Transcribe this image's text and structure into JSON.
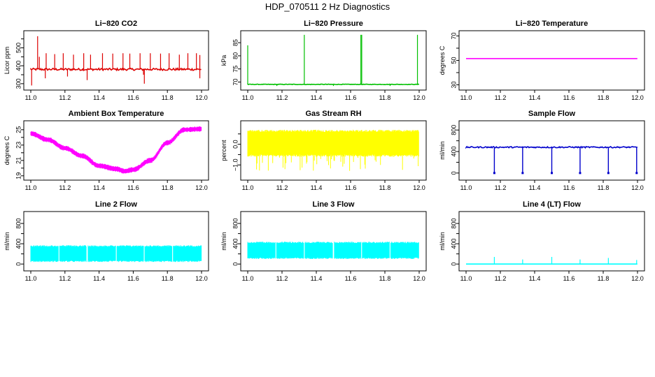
{
  "figure_title": "HDP_070511  2 Hz Diagnostics",
  "chart_data": [
    {
      "type": "line",
      "title": "Li−820 CO2",
      "ylabel": "Licor ppm",
      "color": "#dd0000",
      "xlim": [
        11.0,
        12.0
      ],
      "xticks": [
        "11.0",
        "11.2",
        "11.4",
        "11.6",
        "11.8",
        "12.0"
      ],
      "ylim": [
        280,
        580
      ],
      "yticks": [
        300,
        350,
        400,
        450,
        500,
        550
      ],
      "ytick_labels": [
        "300",
        "",
        "400",
        "",
        "500",
        ""
      ],
      "series": [
        {
          "name": "CO2",
          "baseline": 380,
          "noise": 6,
          "spikes": [
            {
              "x": 11.04,
              "v": 565
            },
            {
              "x": 11.05,
              "v": 450
            },
            {
              "x": 11.09,
              "v": 470
            },
            {
              "x": 11.14,
              "v": 465
            },
            {
              "x": 11.19,
              "v": 470
            },
            {
              "x": 11.25,
              "v": 462
            },
            {
              "x": 11.31,
              "v": 470
            },
            {
              "x": 11.33,
              "v": 320
            },
            {
              "x": 11.35,
              "v": 462
            },
            {
              "x": 11.42,
              "v": 470
            },
            {
              "x": 11.48,
              "v": 468
            },
            {
              "x": 11.54,
              "v": 470
            },
            {
              "x": 11.58,
              "v": 468
            },
            {
              "x": 11.64,
              "v": 470
            },
            {
              "x": 11.66,
              "v": 350
            },
            {
              "x": 11.7,
              "v": 470
            },
            {
              "x": 11.76,
              "v": 468
            },
            {
              "x": 11.81,
              "v": 470
            },
            {
              "x": 11.87,
              "v": 462
            },
            {
              "x": 11.92,
              "v": 470
            },
            {
              "x": 11.97,
              "v": 470
            },
            {
              "x": 11.99,
              "v": 460
            },
            {
              "x": 11.005,
              "v": 290
            },
            {
              "x": 11.085,
              "v": 330
            },
            {
              "x": 11.215,
              "v": 340
            },
            {
              "x": 11.665,
              "v": 300
            },
            {
              "x": 11.99,
              "v": 330
            }
          ]
        }
      ]
    },
    {
      "type": "line",
      "title": "Li−820 Pressure",
      "ylabel": "kPa",
      "color": "#00c000",
      "xlim": [
        11.0,
        12.0
      ],
      "xticks": [
        "11.0",
        "11.2",
        "11.4",
        "11.6",
        "11.8",
        "12.0"
      ],
      "ylim": [
        68,
        88.5
      ],
      "yticks": [
        70,
        75,
        80,
        85
      ],
      "ytick_labels": [
        "70",
        "75",
        "80",
        "85"
      ],
      "series": [
        {
          "name": "Pressure",
          "baseline": 69.1,
          "noise": 0.1,
          "spikes": [
            {
              "x": 11.0,
              "v": 84
            },
            {
              "x": 11.33,
              "v": 88
            },
            {
              "x": 11.66,
              "v": 88
            },
            {
              "x": 11.665,
              "v": 88
            },
            {
              "x": 11.99,
              "v": 88
            },
            {
              "x": 11.17,
              "v": 68.5
            },
            {
              "x": 11.5,
              "v": 68.5
            },
            {
              "x": 11.83,
              "v": 68.5
            }
          ]
        }
      ]
    },
    {
      "type": "line",
      "title": "Li−820 Temperature",
      "ylabel": "degrees C",
      "color": "#ff00ff",
      "xlim": [
        11.0,
        12.0
      ],
      "xticks": [
        "11.0",
        "11.2",
        "11.4",
        "11.6",
        "11.8",
        "12.0"
      ],
      "ylim": [
        28,
        72
      ],
      "yticks": [
        30,
        40,
        50,
        60,
        70
      ],
      "ytick_labels": [
        "30",
        "",
        "50",
        "",
        "70"
      ],
      "series": [
        {
          "name": "Temperature",
          "baseline": 51.5,
          "noise": 0,
          "spikes": []
        }
      ]
    },
    {
      "type": "line",
      "title": "Ambient Box Temperature",
      "ylabel": "degrees C",
      "color": "#ff00ff",
      "xlim": [
        11.0,
        12.0
      ],
      "xticks": [
        "11.0",
        "11.2",
        "11.4",
        "11.6",
        "11.8",
        "12.0"
      ],
      "ylim": [
        18.8,
        25.8
      ],
      "yticks": [
        19,
        20,
        21,
        22,
        23,
        24,
        25
      ],
      "ytick_labels": [
        "19",
        "",
        "21",
        "",
        "23",
        "",
        "25"
      ],
      "series": [
        {
          "name": "Ambient",
          "noise": 0.35,
          "x": [
            11.0,
            11.1,
            11.2,
            11.3,
            11.4,
            11.5,
            11.55,
            11.6,
            11.7,
            11.8,
            11.9,
            12.0
          ],
          "values": [
            24.5,
            23.7,
            22.6,
            21.6,
            20.3,
            19.9,
            19.6,
            19.8,
            21.0,
            23.3,
            25.0,
            25.1
          ]
        }
      ]
    },
    {
      "type": "line",
      "title": "Gas Stream RH",
      "ylabel": "percent",
      "color": "#ffff00",
      "xlim": [
        11.0,
        12.0
      ],
      "xticks": [
        "11.0",
        "11.2",
        "11.4",
        "11.6",
        "11.8",
        "12.0"
      ],
      "ylim": [
        -1.6,
        1.0
      ],
      "yticks": [
        -1.0,
        -0.5,
        0.0,
        0.5
      ],
      "ytick_labels": [
        "−1.0",
        "",
        "0.0",
        ""
      ],
      "series": [
        {
          "name": "RH",
          "band": [
            -0.6,
            0.7
          ],
          "dips_to": -1.3
        }
      ]
    },
    {
      "type": "line",
      "title": "Sample Flow",
      "ylabel": "ml/min",
      "color": "#0000cc",
      "xlim": [
        11.0,
        12.0
      ],
      "xticks": [
        "11.0",
        "11.2",
        "11.4",
        "11.6",
        "11.8",
        "12.0"
      ],
      "ylim": [
        -80,
        920
      ],
      "yticks": [
        0,
        200,
        400,
        600,
        800
      ],
      "ytick_labels": [
        "0",
        "",
        "400",
        "",
        "800"
      ],
      "series": [
        {
          "name": "Sample",
          "baseline": 480,
          "noise": 12,
          "drops": [
            {
              "x": 11.165,
              "v": 0
            },
            {
              "x": 11.33,
              "v": 0
            },
            {
              "x": 11.5,
              "v": 0
            },
            {
              "x": 11.665,
              "v": 0
            },
            {
              "x": 11.83,
              "v": 0
            },
            {
              "x": 11.995,
              "v": 0
            }
          ]
        }
      ]
    },
    {
      "type": "line",
      "title": "Line 2 Flow",
      "ylabel": "ml/min",
      "color": "#00ffff",
      "xlim": [
        11.0,
        12.0
      ],
      "xticks": [
        "11.0",
        "11.2",
        "11.4",
        "11.6",
        "11.8",
        "12.0"
      ],
      "ylim": [
        -80,
        980
      ],
      "yticks": [
        0,
        200,
        400,
        600,
        800
      ],
      "ytick_labels": [
        "0",
        "",
        "400",
        "",
        "800"
      ],
      "series": [
        {
          "name": "Line 2",
          "band": [
            40,
            370
          ],
          "gaps": [
            11.165,
            11.33,
            11.5,
            11.665,
            11.83
          ]
        }
      ]
    },
    {
      "type": "line",
      "title": "Line 3 Flow",
      "ylabel": "ml/min",
      "color": "#00ffff",
      "xlim": [
        11.0,
        12.0
      ],
      "xticks": [
        "11.0",
        "11.2",
        "11.4",
        "11.6",
        "11.8",
        "12.0"
      ],
      "ylim": [
        -80,
        980
      ],
      "yticks": [
        0,
        200,
        400,
        600,
        800
      ],
      "ytick_labels": [
        "0",
        "",
        "400",
        "",
        "800"
      ],
      "series": [
        {
          "name": "Line 3",
          "band": [
            100,
            440
          ],
          "gaps": [
            11.165,
            11.33,
            11.5,
            11.665,
            11.83
          ]
        }
      ]
    },
    {
      "type": "line",
      "title": "Line 4 (LT) Flow",
      "ylabel": "ml/min",
      "color": "#00ffff",
      "xlim": [
        11.0,
        12.0
      ],
      "xticks": [
        "11.0",
        "11.2",
        "11.4",
        "11.6",
        "11.8",
        "12.0"
      ],
      "ylim": [
        -80,
        980
      ],
      "yticks": [
        0,
        200,
        400,
        600,
        800
      ],
      "ytick_labels": [
        "0",
        "",
        "400",
        "",
        "800"
      ],
      "series": [
        {
          "name": "Line 4",
          "baseline": 0,
          "noise": 0,
          "spikes": [
            {
              "x": 11.165,
              "v": 140
            },
            {
              "x": 11.33,
              "v": 90
            },
            {
              "x": 11.5,
              "v": 140
            },
            {
              "x": 11.665,
              "v": 90
            },
            {
              "x": 11.83,
              "v": 120
            },
            {
              "x": 11.995,
              "v": 80
            }
          ]
        }
      ]
    }
  ]
}
